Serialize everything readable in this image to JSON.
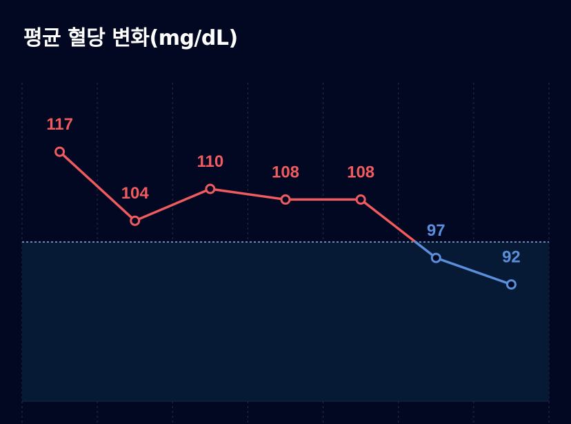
{
  "title": "평균 혈당 변화(mg/dL)",
  "colors": {
    "background": "#030822",
    "above_threshold": "#ef5b5e",
    "below_threshold": "#5b8fdc",
    "normal_zone_fill": "#061a35",
    "threshold_line": "#8fb4e8",
    "grid": "#253049"
  },
  "chart_data": {
    "type": "line",
    "title": "평균 혈당 변화(mg/dL)",
    "xlabel": "",
    "ylabel": "",
    "categories": [
      "",
      "",
      "",
      "",
      "",
      "",
      ""
    ],
    "values": [
      117,
      104,
      110,
      108,
      108,
      97,
      92
    ],
    "data_labels": [
      "117",
      "104",
      "110",
      "108",
      "108",
      "97",
      "92"
    ],
    "threshold": 100,
    "ylim": [
      70,
      130
    ],
    "shaded_zone": "below threshold",
    "grid": "vertical dashed",
    "legend": "none"
  }
}
